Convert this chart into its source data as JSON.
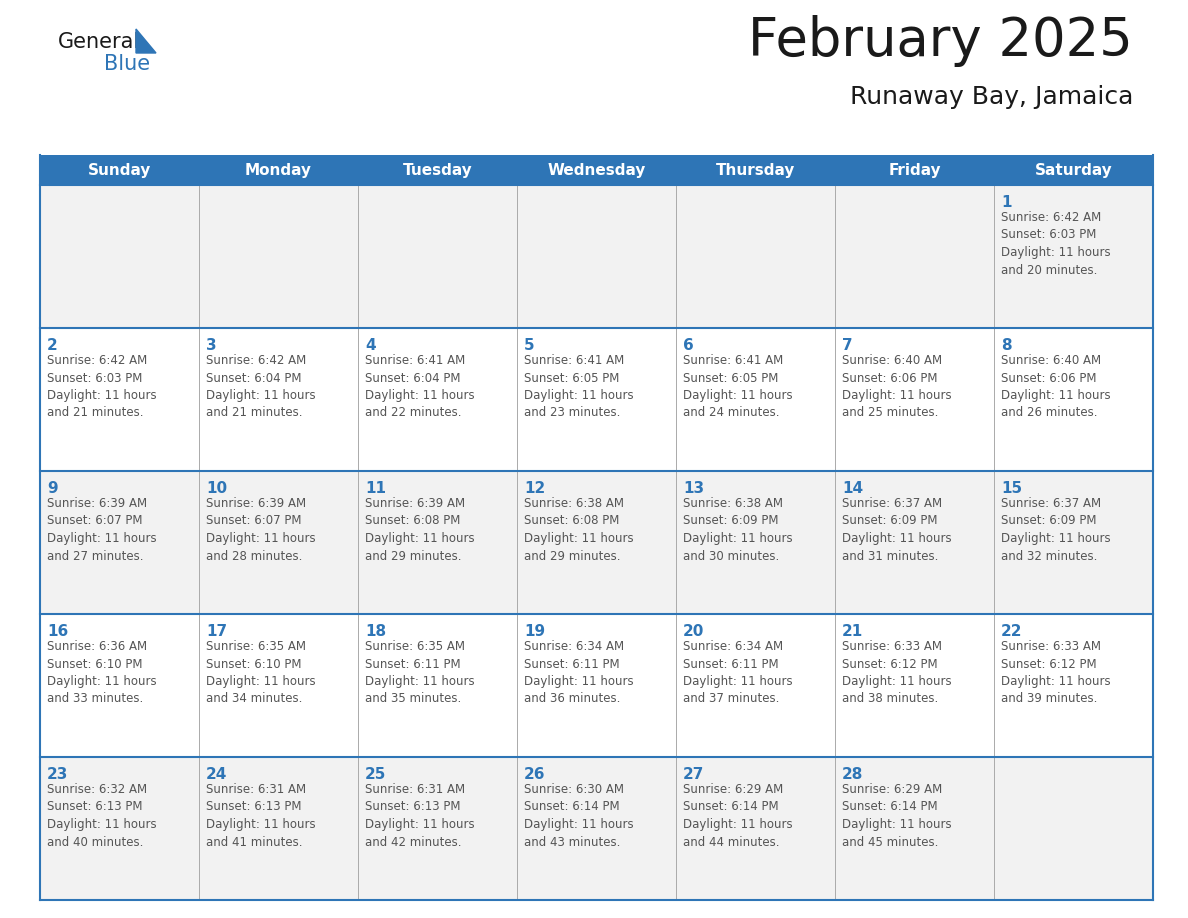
{
  "title": "February 2025",
  "subtitle": "Runaway Bay, Jamaica",
  "header_bg_color": "#2e75b6",
  "header_text_color": "#ffffff",
  "cell_border_color": "#2e75b6",
  "cell_inner_border_color": "#aaaaaa",
  "day_number_color": "#2e75b6",
  "info_text_color": "#555555",
  "background_color": "#ffffff",
  "alt_row_color": "#f2f2f2",
  "days_of_week": [
    "Sunday",
    "Monday",
    "Tuesday",
    "Wednesday",
    "Thursday",
    "Friday",
    "Saturday"
  ],
  "weeks": [
    [
      {
        "day": null,
        "info": null
      },
      {
        "day": null,
        "info": null
      },
      {
        "day": null,
        "info": null
      },
      {
        "day": null,
        "info": null
      },
      {
        "day": null,
        "info": null
      },
      {
        "day": null,
        "info": null
      },
      {
        "day": 1,
        "info": "Sunrise: 6:42 AM\nSunset: 6:03 PM\nDaylight: 11 hours\nand 20 minutes."
      }
    ],
    [
      {
        "day": 2,
        "info": "Sunrise: 6:42 AM\nSunset: 6:03 PM\nDaylight: 11 hours\nand 21 minutes."
      },
      {
        "day": 3,
        "info": "Sunrise: 6:42 AM\nSunset: 6:04 PM\nDaylight: 11 hours\nand 21 minutes."
      },
      {
        "day": 4,
        "info": "Sunrise: 6:41 AM\nSunset: 6:04 PM\nDaylight: 11 hours\nand 22 minutes."
      },
      {
        "day": 5,
        "info": "Sunrise: 6:41 AM\nSunset: 6:05 PM\nDaylight: 11 hours\nand 23 minutes."
      },
      {
        "day": 6,
        "info": "Sunrise: 6:41 AM\nSunset: 6:05 PM\nDaylight: 11 hours\nand 24 minutes."
      },
      {
        "day": 7,
        "info": "Sunrise: 6:40 AM\nSunset: 6:06 PM\nDaylight: 11 hours\nand 25 minutes."
      },
      {
        "day": 8,
        "info": "Sunrise: 6:40 AM\nSunset: 6:06 PM\nDaylight: 11 hours\nand 26 minutes."
      }
    ],
    [
      {
        "day": 9,
        "info": "Sunrise: 6:39 AM\nSunset: 6:07 PM\nDaylight: 11 hours\nand 27 minutes."
      },
      {
        "day": 10,
        "info": "Sunrise: 6:39 AM\nSunset: 6:07 PM\nDaylight: 11 hours\nand 28 minutes."
      },
      {
        "day": 11,
        "info": "Sunrise: 6:39 AM\nSunset: 6:08 PM\nDaylight: 11 hours\nand 29 minutes."
      },
      {
        "day": 12,
        "info": "Sunrise: 6:38 AM\nSunset: 6:08 PM\nDaylight: 11 hours\nand 29 minutes."
      },
      {
        "day": 13,
        "info": "Sunrise: 6:38 AM\nSunset: 6:09 PM\nDaylight: 11 hours\nand 30 minutes."
      },
      {
        "day": 14,
        "info": "Sunrise: 6:37 AM\nSunset: 6:09 PM\nDaylight: 11 hours\nand 31 minutes."
      },
      {
        "day": 15,
        "info": "Sunrise: 6:37 AM\nSunset: 6:09 PM\nDaylight: 11 hours\nand 32 minutes."
      }
    ],
    [
      {
        "day": 16,
        "info": "Sunrise: 6:36 AM\nSunset: 6:10 PM\nDaylight: 11 hours\nand 33 minutes."
      },
      {
        "day": 17,
        "info": "Sunrise: 6:35 AM\nSunset: 6:10 PM\nDaylight: 11 hours\nand 34 minutes."
      },
      {
        "day": 18,
        "info": "Sunrise: 6:35 AM\nSunset: 6:11 PM\nDaylight: 11 hours\nand 35 minutes."
      },
      {
        "day": 19,
        "info": "Sunrise: 6:34 AM\nSunset: 6:11 PM\nDaylight: 11 hours\nand 36 minutes."
      },
      {
        "day": 20,
        "info": "Sunrise: 6:34 AM\nSunset: 6:11 PM\nDaylight: 11 hours\nand 37 minutes."
      },
      {
        "day": 21,
        "info": "Sunrise: 6:33 AM\nSunset: 6:12 PM\nDaylight: 11 hours\nand 38 minutes."
      },
      {
        "day": 22,
        "info": "Sunrise: 6:33 AM\nSunset: 6:12 PM\nDaylight: 11 hours\nand 39 minutes."
      }
    ],
    [
      {
        "day": 23,
        "info": "Sunrise: 6:32 AM\nSunset: 6:13 PM\nDaylight: 11 hours\nand 40 minutes."
      },
      {
        "day": 24,
        "info": "Sunrise: 6:31 AM\nSunset: 6:13 PM\nDaylight: 11 hours\nand 41 minutes."
      },
      {
        "day": 25,
        "info": "Sunrise: 6:31 AM\nSunset: 6:13 PM\nDaylight: 11 hours\nand 42 minutes."
      },
      {
        "day": 26,
        "info": "Sunrise: 6:30 AM\nSunset: 6:14 PM\nDaylight: 11 hours\nand 43 minutes."
      },
      {
        "day": 27,
        "info": "Sunrise: 6:29 AM\nSunset: 6:14 PM\nDaylight: 11 hours\nand 44 minutes."
      },
      {
        "day": 28,
        "info": "Sunrise: 6:29 AM\nSunset: 6:14 PM\nDaylight: 11 hours\nand 45 minutes."
      },
      {
        "day": null,
        "info": null
      }
    ]
  ],
  "logo_general_color": "#1a1a1a",
  "logo_blue_color": "#2e75b6",
  "logo_triangle_color": "#2e75b6",
  "title_fontsize": 38,
  "subtitle_fontsize": 18,
  "header_fontsize": 11,
  "day_num_fontsize": 11,
  "info_fontsize": 8.5
}
